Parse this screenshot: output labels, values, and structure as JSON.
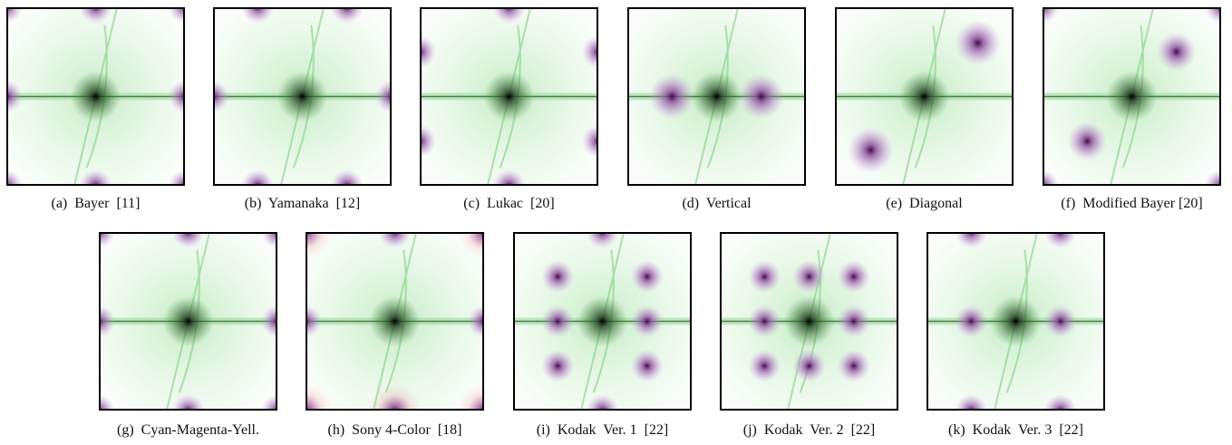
{
  "figure": {
    "captions": [
      "(a)  Bayer  [11]",
      "(b)  Yamanaka  [12]",
      "(c)  Lukac  [20]",
      "(d)  Vertical",
      "(e)  Diagonal",
      "(f)  Modified Bayer [20]",
      "(g)  Cyan-Magenta-Yell.",
      "(h)  Sony 4-Color  [18]",
      "(i)  Kodak  Ver. 1  [22]",
      "(j)  Kodak  Ver. 2  [22]",
      "(k)  Kodak  Ver. 3  [22]"
    ]
  }
}
